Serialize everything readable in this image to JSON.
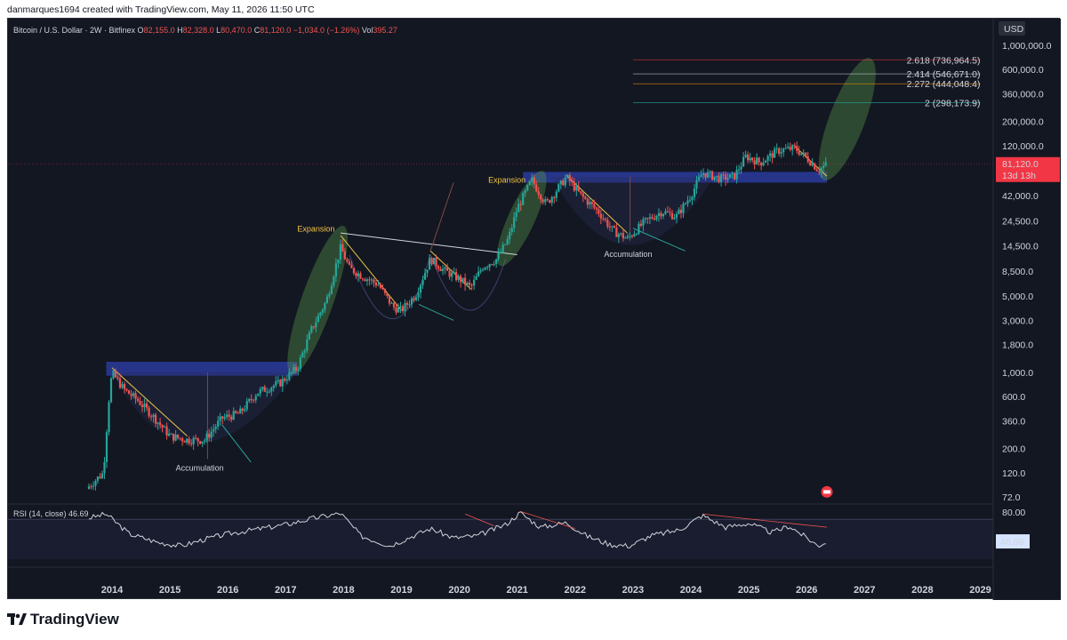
{
  "attribution": "danmarques1694 created with TradingView.com, May 11, 2026 11:50 UTC",
  "symbol": {
    "name": "Bitcoin / U.S. Dollar · 2W · Bitfinex",
    "o_label": "O",
    "o": "82,155.0",
    "h_label": "H",
    "h": "82,328.0",
    "l_label": "L",
    "l": "80,470.0",
    "c_label": "C",
    "c": "81,120.0",
    "change": "−1,034.0 (−1.26%)",
    "vol_label": "Vol",
    "vol": "395.27"
  },
  "currency": "USD",
  "price_badge": {
    "price": "81,120.0",
    "countdown": "13d 13h"
  },
  "rsi": {
    "label": "RSI (14, close)",
    "value": "46.69",
    "badge": "46.69",
    "level_label": "80.00"
  },
  "annotations": {
    "expansion_1": "Expansion",
    "expansion_2": "Expansion",
    "accumulation_1": "Accumulation",
    "accumulation_2": "Accumulation"
  },
  "fib_levels": [
    {
      "text": "2.618 (736,964.5)",
      "color": "#f23645",
      "value": 736964.5
    },
    {
      "text": "2.414 (546,671.0)",
      "color": "#d1d4dc",
      "value": 546671.0
    },
    {
      "text": "2.272 (444,048.4)",
      "color": "#ff9800",
      "value": 444048.4
    },
    {
      "text": "2 (298,173.9)",
      "color": "#26a69a",
      "value": 298173.9
    }
  ],
  "footer": {
    "brand": "TradingView"
  },
  "colors": {
    "up": "#26a69a",
    "down": "#ef5350",
    "background": "#131722",
    "rsi_line": "#d1d4dc",
    "zone_blue": "#2a3a9c",
    "expansion_green": "#5a9a4a",
    "price_badge": "#f23645"
  },
  "chart_data": {
    "type": "candlestick",
    "scale": "log",
    "y_tick_labels": [
      "1,000,000.0",
      "600,000.0",
      "360,000.0",
      "200,000.0",
      "120,000.0",
      "42,000.0",
      "24,500.0",
      "14,500.0",
      "8,500.0",
      "5,000.0",
      "3,000.0",
      "1,800.0",
      "1,000.0",
      "600.0",
      "360.0",
      "200.0",
      "120.0",
      "72.0"
    ],
    "x_tick_labels": [
      "2014",
      "2015",
      "2016",
      "2017",
      "2018",
      "2019",
      "2020",
      "2021",
      "2022",
      "2023",
      "2024",
      "2025",
      "2026",
      "2027",
      "2028",
      "2029"
    ],
    "price_anchors": [
      {
        "x": 2013.6,
        "y": 90
      },
      {
        "x": 2013.85,
        "y": 120
      },
      {
        "x": 2013.95,
        "y": 600
      },
      {
        "x": 2014.0,
        "y": 1000
      },
      {
        "x": 2014.2,
        "y": 700
      },
      {
        "x": 2014.45,
        "y": 550
      },
      {
        "x": 2014.7,
        "y": 400
      },
      {
        "x": 2015.0,
        "y": 260
      },
      {
        "x": 2015.3,
        "y": 240
      },
      {
        "x": 2015.6,
        "y": 240
      },
      {
        "x": 2015.9,
        "y": 380
      },
      {
        "x": 2016.2,
        "y": 420
      },
      {
        "x": 2016.5,
        "y": 650
      },
      {
        "x": 2016.9,
        "y": 800
      },
      {
        "x": 2017.2,
        "y": 1100
      },
      {
        "x": 2017.45,
        "y": 2500
      },
      {
        "x": 2017.7,
        "y": 4500
      },
      {
        "x": 2017.95,
        "y": 14000
      },
      {
        "x": 2018.1,
        "y": 9000
      },
      {
        "x": 2018.35,
        "y": 7500
      },
      {
        "x": 2018.6,
        "y": 6400
      },
      {
        "x": 2018.85,
        "y": 4000
      },
      {
        "x": 2019.0,
        "y": 3700
      },
      {
        "x": 2019.25,
        "y": 5200
      },
      {
        "x": 2019.5,
        "y": 11000
      },
      {
        "x": 2019.75,
        "y": 8500
      },
      {
        "x": 2020.0,
        "y": 7200
      },
      {
        "x": 2020.2,
        "y": 6000
      },
      {
        "x": 2020.4,
        "y": 9300
      },
      {
        "x": 2020.65,
        "y": 11000
      },
      {
        "x": 2020.85,
        "y": 17000
      },
      {
        "x": 2021.0,
        "y": 32000
      },
      {
        "x": 2021.25,
        "y": 58000
      },
      {
        "x": 2021.5,
        "y": 35000
      },
      {
        "x": 2021.85,
        "y": 62000
      },
      {
        "x": 2022.1,
        "y": 42000
      },
      {
        "x": 2022.4,
        "y": 30000
      },
      {
        "x": 2022.65,
        "y": 20000
      },
      {
        "x": 2022.9,
        "y": 16800
      },
      {
        "x": 2023.2,
        "y": 24000
      },
      {
        "x": 2023.5,
        "y": 30000
      },
      {
        "x": 2023.75,
        "y": 27000
      },
      {
        "x": 2024.0,
        "y": 42000
      },
      {
        "x": 2024.2,
        "y": 68000
      },
      {
        "x": 2024.5,
        "y": 60000
      },
      {
        "x": 2024.75,
        "y": 63000
      },
      {
        "x": 2024.95,
        "y": 96000
      },
      {
        "x": 2025.2,
        "y": 84000
      },
      {
        "x": 2025.5,
        "y": 108000
      },
      {
        "x": 2025.8,
        "y": 114000
      },
      {
        "x": 2026.05,
        "y": 88000
      },
      {
        "x": 2026.2,
        "y": 72000
      },
      {
        "x": 2026.35,
        "y": 81120
      }
    ],
    "rsi_anchors": [
      {
        "x": 2013.6,
        "y": 82
      },
      {
        "x": 2013.9,
        "y": 88
      },
      {
        "x": 2014.3,
        "y": 58
      },
      {
        "x": 2014.8,
        "y": 45
      },
      {
        "x": 2015.2,
        "y": 40
      },
      {
        "x": 2015.6,
        "y": 50
      },
      {
        "x": 2016.0,
        "y": 58
      },
      {
        "x": 2016.5,
        "y": 65
      },
      {
        "x": 2017.0,
        "y": 72
      },
      {
        "x": 2017.5,
        "y": 82
      },
      {
        "x": 2017.95,
        "y": 89
      },
      {
        "x": 2018.3,
        "y": 55
      },
      {
        "x": 2018.8,
        "y": 40
      },
      {
        "x": 2019.2,
        "y": 55
      },
      {
        "x": 2019.5,
        "y": 66
      },
      {
        "x": 2019.9,
        "y": 52
      },
      {
        "x": 2020.3,
        "y": 55
      },
      {
        "x": 2020.8,
        "y": 72
      },
      {
        "x": 2021.05,
        "y": 90
      },
      {
        "x": 2021.4,
        "y": 68
      },
      {
        "x": 2021.85,
        "y": 75
      },
      {
        "x": 2022.2,
        "y": 55
      },
      {
        "x": 2022.6,
        "y": 42
      },
      {
        "x": 2022.95,
        "y": 40
      },
      {
        "x": 2023.3,
        "y": 55
      },
      {
        "x": 2023.8,
        "y": 64
      },
      {
        "x": 2024.2,
        "y": 86
      },
      {
        "x": 2024.6,
        "y": 68
      },
      {
        "x": 2025.0,
        "y": 74
      },
      {
        "x": 2025.4,
        "y": 60
      },
      {
        "x": 2025.7,
        "y": 70
      },
      {
        "x": 2026.0,
        "y": 52
      },
      {
        "x": 2026.2,
        "y": 40
      },
      {
        "x": 2026.35,
        "y": 46.69
      }
    ],
    "rsi_upper_level": 80
  }
}
